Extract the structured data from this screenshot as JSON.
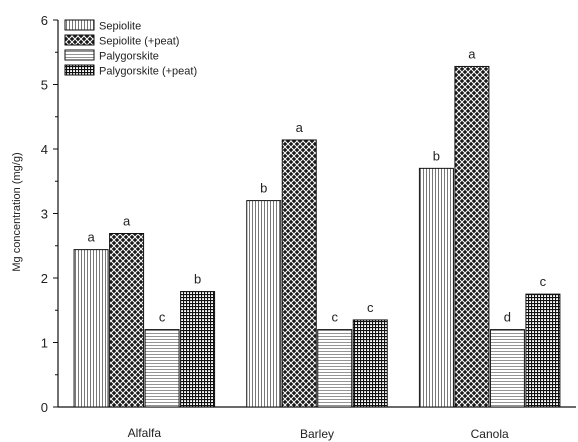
{
  "chart_data": {
    "type": "bar",
    "title": "",
    "xlabel": "",
    "ylabel": "Mg concentration (mg/g)",
    "ylim": [
      0,
      6
    ],
    "yticks": [
      0,
      1,
      2,
      3,
      4,
      5,
      6
    ],
    "grid": false,
    "legend_position": "top-left",
    "categories": [
      "Alfalfa",
      "Barley",
      "Canola"
    ],
    "series": [
      {
        "name": "Sepiolite",
        "pattern": "vertical-lines",
        "values": [
          2.44,
          3.2,
          3.7
        ],
        "labels": [
          "a",
          "b",
          "b"
        ]
      },
      {
        "name": "Sepiolite (+peat)",
        "pattern": "dense-crosshatch-dark",
        "values": [
          2.69,
          4.14,
          5.28
        ],
        "labels": [
          "a",
          "a",
          "a"
        ]
      },
      {
        "name": "Palygorskite",
        "pattern": "horizontal-lines",
        "values": [
          1.2,
          1.2,
          1.2
        ],
        "labels": [
          "c",
          "c",
          "d"
        ]
      },
      {
        "name": "Palygorskite (+peat)",
        "pattern": "grid",
        "values": [
          1.79,
          1.35,
          1.75
        ],
        "labels": [
          "b",
          "c",
          "c"
        ]
      }
    ],
    "colors": {
      "stroke": "#111111",
      "fill": "#ffffff"
    }
  }
}
